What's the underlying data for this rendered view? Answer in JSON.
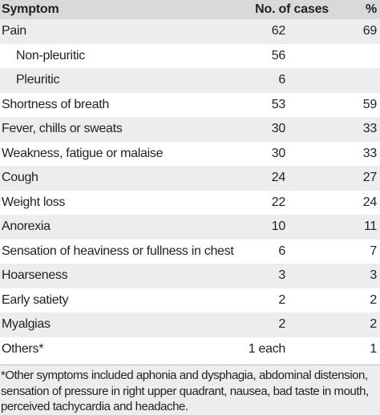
{
  "table": {
    "headers": {
      "symptom": "Symptom",
      "cases": "No. of cases",
      "percent": "%"
    },
    "rows": [
      {
        "symptom": "Pain",
        "cases": "62",
        "percent": "69"
      },
      {
        "symptom": "Non-pleuritic",
        "cases": "56",
        "percent": ""
      },
      {
        "symptom": "Pleuritic",
        "cases": "6",
        "percent": ""
      },
      {
        "symptom": "Shortness of breath",
        "cases": "53",
        "percent": "59"
      },
      {
        "symptom": "Fever, chills or sweats",
        "cases": "30",
        "percent": "33"
      },
      {
        "symptom": "Weakness, fatigue or malaise",
        "cases": "30",
        "percent": "33"
      },
      {
        "symptom": "Cough",
        "cases": "24",
        "percent": "27"
      },
      {
        "symptom": "Weight loss",
        "cases": "22",
        "percent": "24"
      },
      {
        "symptom": "Anorexia",
        "cases": "10",
        "percent": "11"
      },
      {
        "symptom": "Sensation of heaviness or fullness in chest",
        "cases": "6",
        "percent": "7"
      },
      {
        "symptom": "Hoarseness",
        "cases": "3",
        "percent": "3"
      },
      {
        "symptom": "Early satiety",
        "cases": "2",
        "percent": "2"
      },
      {
        "symptom": "Myalgias",
        "cases": "2",
        "percent": "2"
      },
      {
        "symptom": "Others*",
        "cases": "1 each",
        "percent": "1"
      }
    ],
    "footnote": "*Other symptoms included aphonia and dysphagia, abdominal distension, sensation of pressure in right upper quadrant, nausea, bad taste in mouth, perceived tachycardia and headache."
  },
  "colors": {
    "header_bg": "#d9d9d9",
    "shaded_row_bg": "#ededed",
    "text": "#231f20"
  }
}
